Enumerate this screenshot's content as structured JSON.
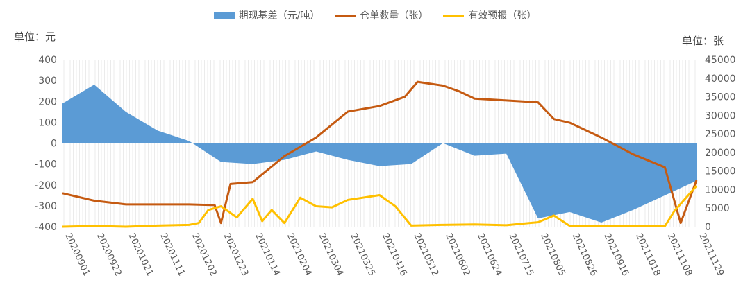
{
  "legend": {
    "basis": "期现基差（元/吨）",
    "warehouse": "仓单数量（张）",
    "forecast": "有效预报（张）"
  },
  "units": {
    "left": "单位：元",
    "right": "单位：张"
  },
  "colors": {
    "basis": "#5b9bd5",
    "warehouse": "#c55a11",
    "forecast": "#ffc000",
    "grid": "#ebebeb"
  },
  "chart_data": {
    "type": "area",
    "x_ticks": [
      "20200901",
      "20200922",
      "20201021",
      "20201111",
      "20201202",
      "20201223",
      "20210114",
      "20210204",
      "20210304",
      "20210325",
      "20210416",
      "20210512",
      "20210602",
      "20210624",
      "20210715",
      "20210805",
      "20210826",
      "20210916",
      "20211018",
      "20211108",
      "20211129"
    ],
    "y_left": {
      "label": "单位：元",
      "min": -400,
      "max": 400,
      "ticks": [
        400,
        300,
        200,
        100,
        0,
        -100,
        -200,
        -300,
        -400
      ]
    },
    "y_right": {
      "label": "单位：张",
      "min": 0,
      "max": 45000,
      "ticks": [
        45000,
        40000,
        35000,
        30000,
        25000,
        20000,
        15000,
        10000,
        5000,
        0
      ]
    },
    "series": [
      {
        "name": "期现基差（元/吨）",
        "type": "area",
        "axis": "left",
        "x": [
          0,
          1,
          2,
          3,
          4,
          5,
          6,
          7,
          8,
          9,
          10,
          11,
          12,
          13,
          14,
          15,
          16,
          17,
          18,
          19,
          20
        ],
        "values": [
          190,
          280,
          150,
          60,
          10,
          -90,
          -100,
          -80,
          -40,
          -80,
          -110,
          -100,
          0,
          -60,
          -50,
          -360,
          -330,
          -380,
          -320,
          -250,
          -180
        ]
      },
      {
        "name": "仓单数量（张）",
        "type": "line",
        "axis": "right",
        "x": [
          0,
          1,
          2,
          3,
          4,
          4.8,
          5,
          5.3,
          6,
          7,
          8,
          9,
          10,
          10.8,
          11.2,
          12,
          12.5,
          13,
          14,
          15,
          15.5,
          16,
          17,
          18,
          19,
          19.5,
          20
        ],
        "values": [
          9000,
          7000,
          6000,
          6000,
          6000,
          5800,
          1000,
          11500,
          12000,
          19000,
          24000,
          31000,
          32500,
          35000,
          39000,
          38000,
          36500,
          34500,
          34000,
          33500,
          29000,
          28000,
          24000,
          19500,
          16000,
          1000,
          12500
        ]
      },
      {
        "name": "有效预报（张）",
        "type": "line",
        "axis": "right",
        "x": [
          0,
          1,
          2,
          3,
          4,
          4.3,
          4.6,
          5,
          5.5,
          6,
          6.3,
          6.6,
          7,
          7.5,
          8,
          8.5,
          9,
          10,
          10.5,
          11,
          12,
          13,
          14,
          15,
          15.5,
          16,
          17,
          18,
          19,
          19.3,
          20
        ],
        "values": [
          0,
          200,
          0,
          300,
          500,
          1000,
          4500,
          5500,
          2500,
          7500,
          1500,
          4500,
          1000,
          7800,
          5500,
          5200,
          7200,
          8500,
          5500,
          300,
          500,
          600,
          400,
          1200,
          3000,
          200,
          200,
          100,
          100,
          4200,
          11000
        ]
      }
    ]
  }
}
